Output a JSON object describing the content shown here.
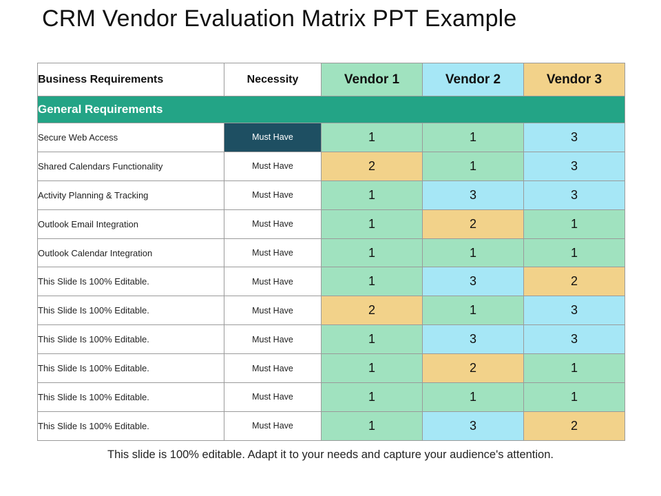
{
  "title": "CRM Vendor Evaluation Matrix PPT Example",
  "colors": {
    "green": "#a0e2bf",
    "blue": "#a6e7f6",
    "orange": "#f2d28a",
    "section": "#23a486",
    "highlight": "#1e4f62"
  },
  "table": {
    "headers": {
      "requirement": "Business Requirements",
      "necessity": "Necessity",
      "vendors": [
        {
          "label": "Vendor 1",
          "color": "green"
        },
        {
          "label": "Vendor 2",
          "color": "blue"
        },
        {
          "label": "Vendor 3",
          "color": "orange"
        }
      ]
    },
    "section": "General Requirements",
    "rows": [
      {
        "requirement": "Secure Web Access",
        "necessity": "Must Have",
        "highlight": true,
        "scores": [
          {
            "v": "1",
            "c": "green"
          },
          {
            "v": "1",
            "c": "green"
          },
          {
            "v": "3",
            "c": "blue"
          }
        ]
      },
      {
        "requirement": "Shared Calendars Functionality",
        "necessity": "Must Have",
        "highlight": false,
        "scores": [
          {
            "v": "2",
            "c": "orange"
          },
          {
            "v": "1",
            "c": "green"
          },
          {
            "v": "3",
            "c": "blue"
          }
        ]
      },
      {
        "requirement": "Activity Planning & Tracking",
        "necessity": "Must Have",
        "highlight": false,
        "scores": [
          {
            "v": "1",
            "c": "green"
          },
          {
            "v": "3",
            "c": "blue"
          },
          {
            "v": "3",
            "c": "blue"
          }
        ]
      },
      {
        "requirement": "Outlook Email Integration",
        "necessity": "Must Have",
        "highlight": false,
        "scores": [
          {
            "v": "1",
            "c": "green"
          },
          {
            "v": "2",
            "c": "orange"
          },
          {
            "v": "1",
            "c": "green"
          }
        ]
      },
      {
        "requirement": "Outlook Calendar Integration",
        "necessity": "Must Have",
        "highlight": false,
        "scores": [
          {
            "v": "1",
            "c": "green"
          },
          {
            "v": "1",
            "c": "green"
          },
          {
            "v": "1",
            "c": "green"
          }
        ]
      },
      {
        "requirement": "This Slide Is 100% Editable.",
        "necessity": "Must Have",
        "highlight": false,
        "scores": [
          {
            "v": "1",
            "c": "green"
          },
          {
            "v": "3",
            "c": "blue"
          },
          {
            "v": "2",
            "c": "orange"
          }
        ]
      },
      {
        "requirement": "This Slide Is 100% Editable.",
        "necessity": "Must Have",
        "highlight": false,
        "scores": [
          {
            "v": "2",
            "c": "orange"
          },
          {
            "v": "1",
            "c": "green"
          },
          {
            "v": "3",
            "c": "blue"
          }
        ]
      },
      {
        "requirement": "This Slide Is 100% Editable.",
        "necessity": "Must Have",
        "highlight": false,
        "scores": [
          {
            "v": "1",
            "c": "green"
          },
          {
            "v": "3",
            "c": "blue"
          },
          {
            "v": "3",
            "c": "blue"
          }
        ]
      },
      {
        "requirement": "This Slide Is 100% Editable.",
        "necessity": "Must Have",
        "highlight": false,
        "scores": [
          {
            "v": "1",
            "c": "green"
          },
          {
            "v": "2",
            "c": "orange"
          },
          {
            "v": "1",
            "c": "green"
          }
        ]
      },
      {
        "requirement": "This Slide Is 100% Editable.",
        "necessity": "Must Have",
        "highlight": false,
        "scores": [
          {
            "v": "1",
            "c": "green"
          },
          {
            "v": "1",
            "c": "green"
          },
          {
            "v": "1",
            "c": "green"
          }
        ]
      },
      {
        "requirement": "This Slide Is 100% Editable.",
        "necessity": "Must Have",
        "highlight": false,
        "scores": [
          {
            "v": "1",
            "c": "green"
          },
          {
            "v": "3",
            "c": "blue"
          },
          {
            "v": "2",
            "c": "orange"
          }
        ]
      }
    ]
  },
  "footer": "This slide is 100% editable. Adapt it to your needs and capture your audience's attention."
}
